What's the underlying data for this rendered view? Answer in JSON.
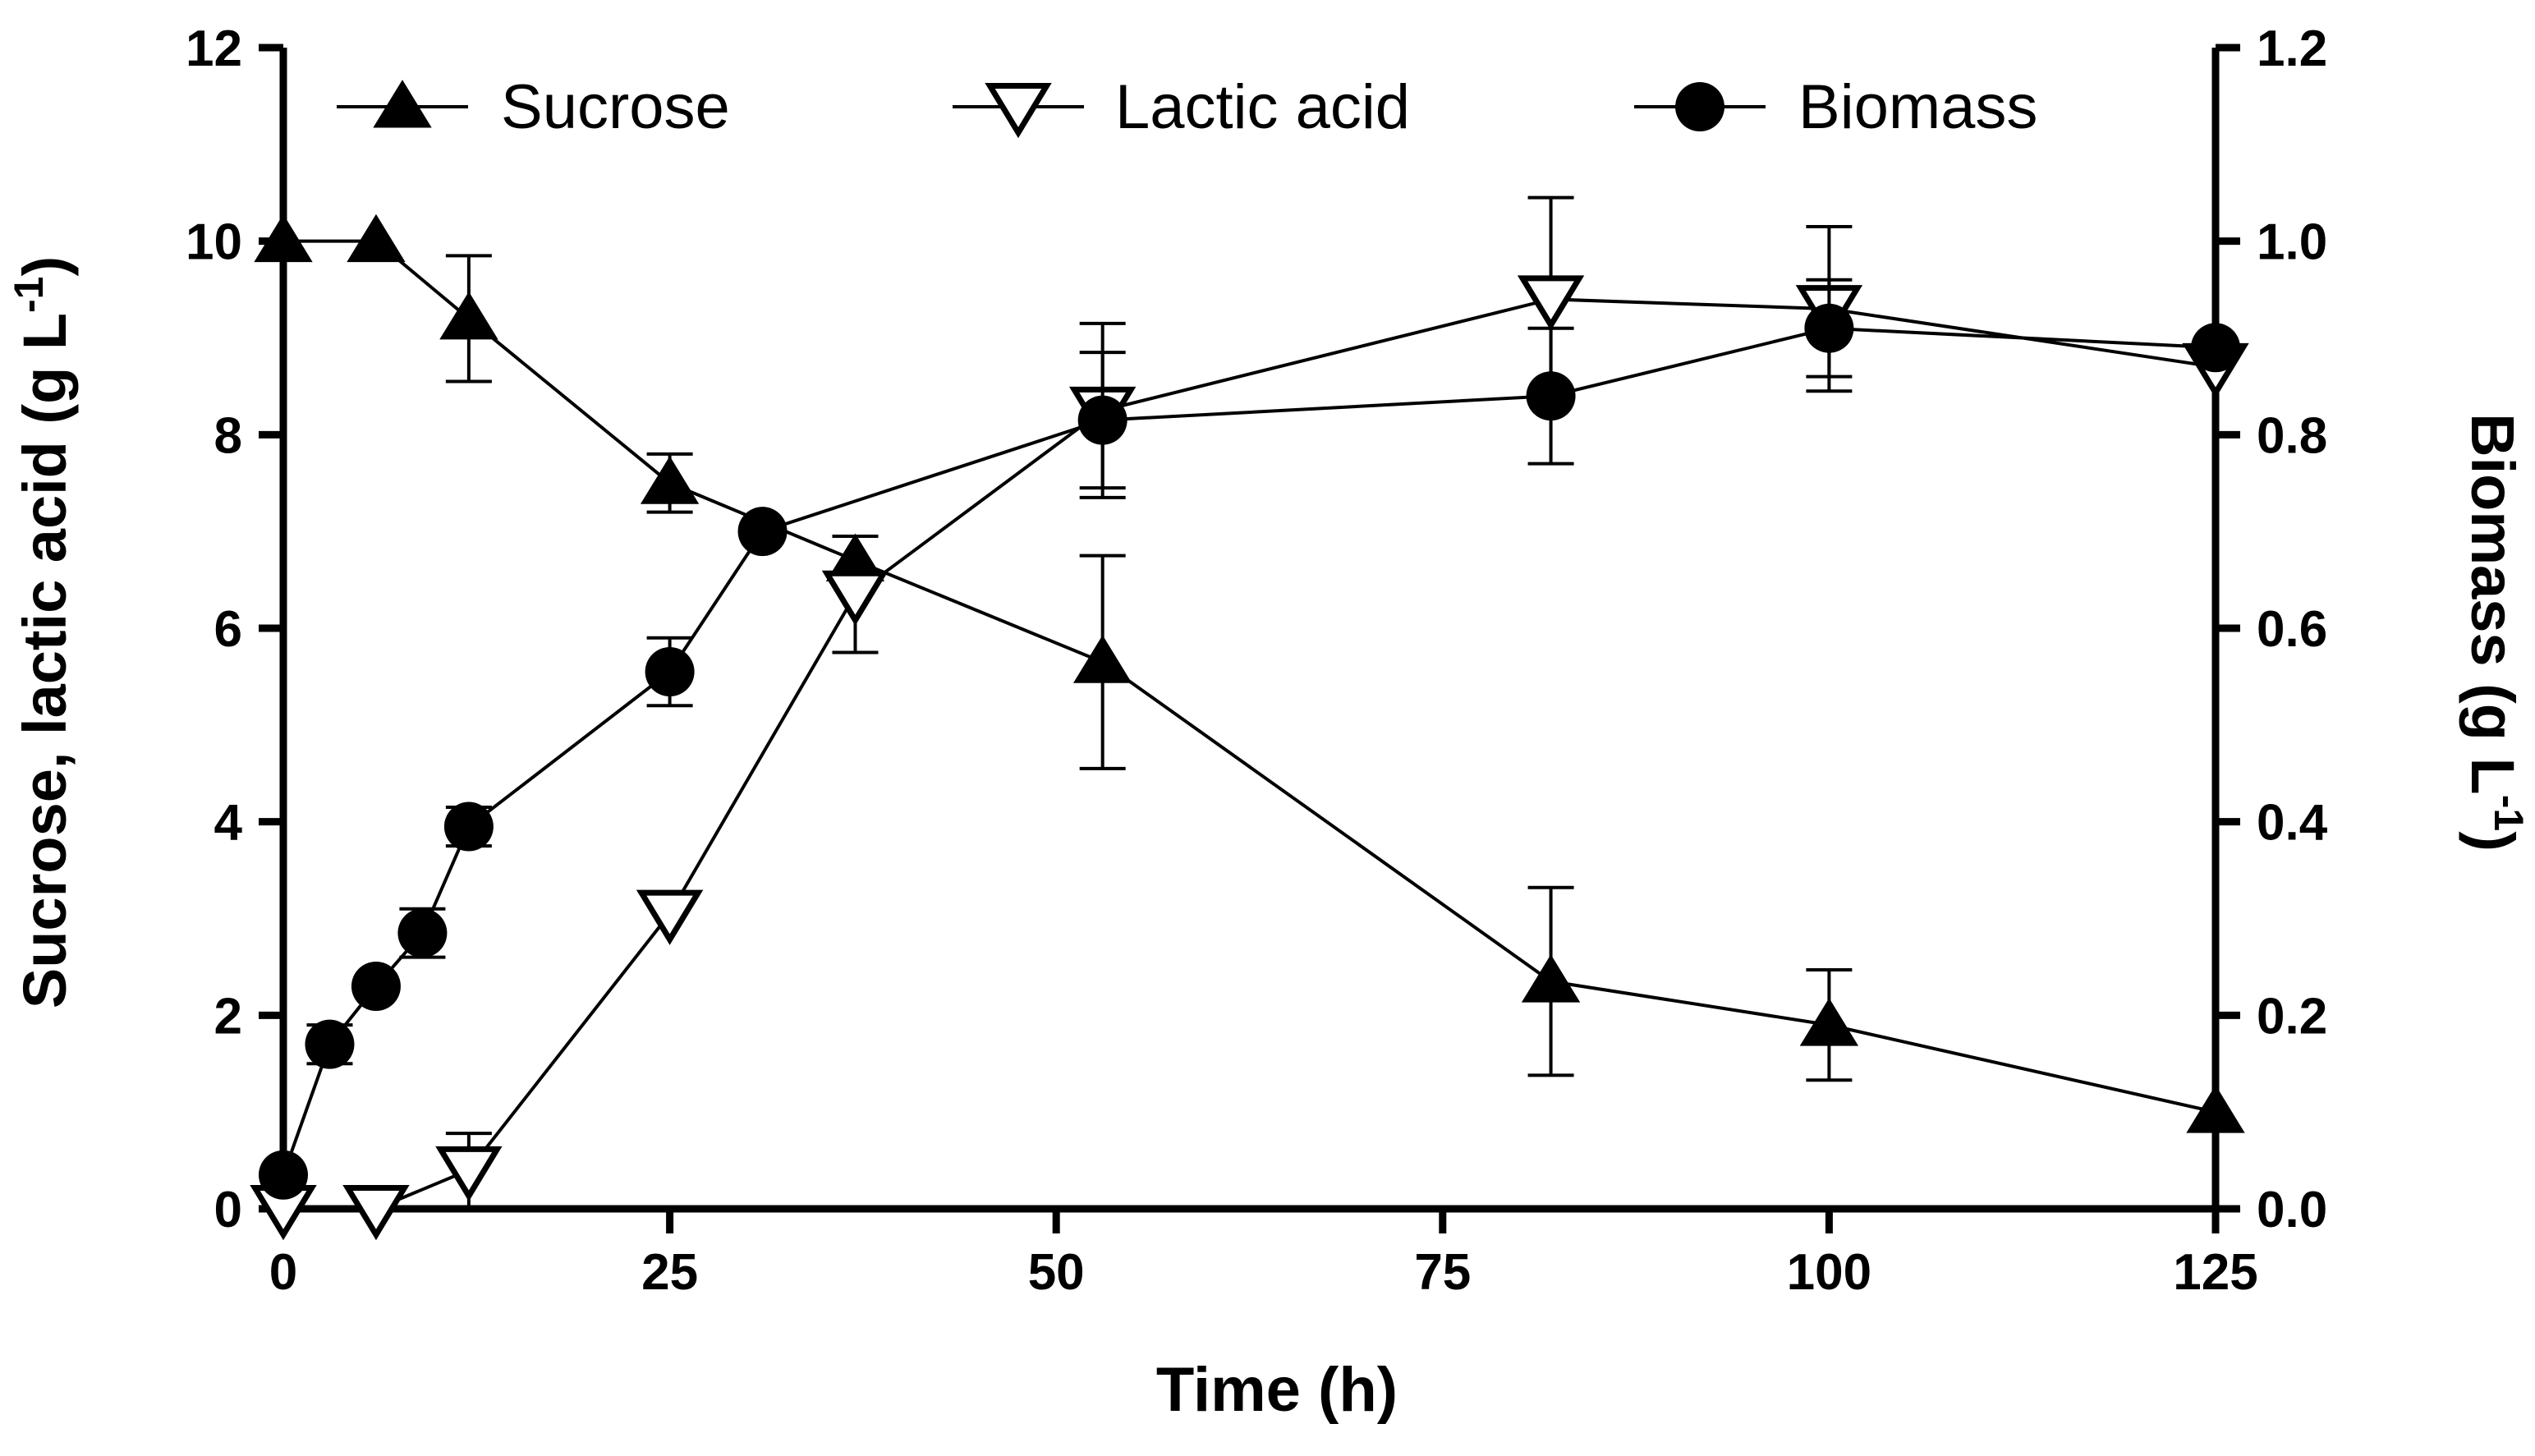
{
  "chart_data": {
    "type": "line",
    "xlabel": "Time (h)",
    "ylabel_left": {
      "text": "Sucrose, lactic acid (g L",
      "sup": "-1",
      "close": ")"
    },
    "ylabel_right": {
      "text": "Biomass (g L",
      "sup": "-1",
      "close": ")"
    },
    "xlim": [
      0,
      125
    ],
    "ylim_left": [
      0,
      12
    ],
    "ylim_right": [
      0,
      1.2
    ],
    "x_ticks": [
      0,
      25,
      50,
      75,
      100,
      125
    ],
    "x_tick_labels": [
      "0",
      "25",
      "50",
      "75",
      "100",
      "125"
    ],
    "y_left_ticks": [
      0,
      2,
      4,
      6,
      8,
      10,
      12
    ],
    "y_left_tick_labels": [
      "0",
      "2",
      "4",
      "6",
      "8",
      "10",
      "12"
    ],
    "y_right_ticks": [
      0,
      0.2,
      0.4,
      0.6,
      0.8,
      1.0,
      1.2
    ],
    "y_right_tick_labels": [
      "0.0",
      "0.2",
      "0.4",
      "0.6",
      "0.8",
      "1.0",
      "1.2"
    ],
    "legend_position": "top",
    "series": [
      {
        "name": "Sucrose",
        "axis": "left",
        "marker": "triangle-up-filled",
        "x": [
          0,
          6,
          12,
          25,
          37,
          53,
          82,
          100,
          125
        ],
        "y": [
          10.0,
          10.0,
          9.2,
          7.5,
          6.7,
          5.65,
          2.35,
          1.9,
          1.0
        ],
        "err": [
          0,
          0,
          0.65,
          0.3,
          0,
          1.1,
          0.97,
          0.57,
          0
        ]
      },
      {
        "name": "Lactic acid",
        "axis": "left",
        "marker": "triangle-down-open",
        "x": [
          0,
          6,
          12,
          25,
          37,
          53,
          82,
          100,
          125
        ],
        "y": [
          0.0,
          0.0,
          0.4,
          3.05,
          6.35,
          8.25,
          9.4,
          9.3,
          8.7
        ],
        "err": [
          0,
          0,
          0.38,
          0,
          0.6,
          0.9,
          1.05,
          0.85,
          0
        ]
      },
      {
        "name": "Biomass",
        "axis": "right",
        "marker": "circle-filled",
        "x": [
          0,
          3,
          6,
          9,
          12,
          25,
          31,
          53,
          82,
          100,
          125
        ],
        "y": [
          0.035,
          0.17,
          0.23,
          0.285,
          0.395,
          0.555,
          0.7,
          0.815,
          0.84,
          0.91,
          0.89
        ],
        "err": [
          0,
          0.02,
          0,
          0.025,
          0.02,
          0.035,
          0,
          0.07,
          0.07,
          0.05,
          0
        ]
      }
    ]
  }
}
